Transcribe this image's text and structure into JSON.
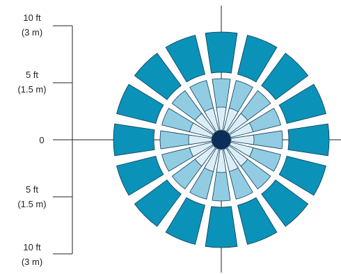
{
  "scale": {
    "labels": [
      {
        "line1": "10 ft",
        "line2": "(3 m)"
      },
      {
        "line1": "5 ft",
        "line2": "(1.5 m)"
      },
      {
        "line1": "0",
        "line2": ""
      },
      {
        "line1": "5 ft",
        "line2": "(1.5 m)"
      },
      {
        "line1": "10 ft",
        "line2": "(3 m)"
      }
    ]
  },
  "colors": {
    "outer": "#0b92b8",
    "middle": "#92cce2",
    "inner": "#dbeef7",
    "center": "#0b2f5a",
    "outline": "#0b3a55",
    "axis": "#222222"
  }
}
